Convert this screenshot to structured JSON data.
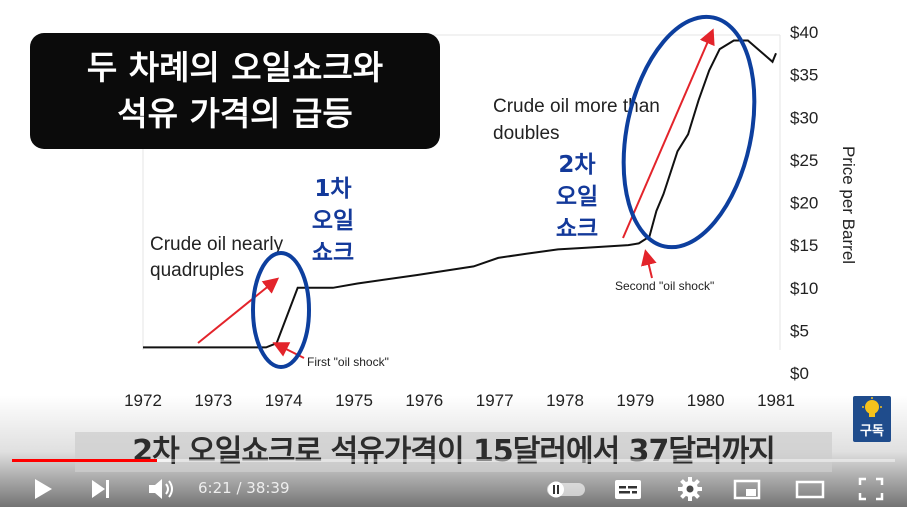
{
  "title_box": {
    "line1": "두 차례의 오일쇼크와",
    "line2": "석유 가격의 급등"
  },
  "caption": "2차 오일쇼크로 석유가격이 15달러에서 37달러까지",
  "chart_data": {
    "type": "line",
    "title": "",
    "xlabel": "",
    "ylabel": "Price per Barrel",
    "x_ticks": [
      "1972",
      "1973",
      "1974",
      "1975",
      "1976",
      "1977",
      "1978",
      "1979",
      "1980",
      "1981"
    ],
    "y_ticks": [
      "$0",
      "$5",
      "$10",
      "$15",
      "$20",
      "$25",
      "$30",
      "$35",
      "$40"
    ],
    "xlim": [
      1972,
      1981
    ],
    "ylim": [
      0,
      40
    ],
    "grid": false,
    "series": [
      {
        "x": [
          1972.0,
          1973.75,
          1973.9,
          1974.2,
          1974.7,
          1975.05,
          1975.9,
          1976.7,
          1977.05,
          1977.45,
          1977.9,
          1978.3,
          1978.9,
          1979.05,
          1979.2,
          1979.3,
          1979.4,
          1979.5,
          1979.6,
          1979.75,
          1979.9,
          1980.05,
          1980.2,
          1980.4,
          1980.6,
          1980.95,
          1981.0
        ],
        "y": [
          3.0,
          3.0,
          3.5,
          10.0,
          10.0,
          10.5,
          11.5,
          12.5,
          13.5,
          14.0,
          14.5,
          14.7,
          15.0,
          15.2,
          16.0,
          19.0,
          21.0,
          23.5,
          26.0,
          28.0,
          32.0,
          35.5,
          38.0,
          39.0,
          39.0,
          36.5,
          37.5
        ]
      }
    ],
    "annotations": [
      {
        "text": "Crude oil nearly",
        "text2": "quadruples",
        "x": 1973.3,
        "y": 6.5
      },
      {
        "text": "First \"oil shock\"",
        "x": 1974.0,
        "y": 2.0
      },
      {
        "text": "Crude oil more than",
        "text2": "doubles",
        "x": 1979.0,
        "y": 26.5
      },
      {
        "text": "Second \"oil shock\"",
        "x": 1979.1,
        "y": 12.0
      }
    ],
    "korean_labels": [
      {
        "line1": "1차",
        "line2": "오일",
        "line3": "쇼크"
      },
      {
        "line1": "2차",
        "line2": "오일",
        "line3": "쇼크"
      }
    ]
  },
  "player": {
    "time_current": "6:21",
    "time_total": "38:39",
    "time_separator": " / ",
    "progress": 0.164,
    "buffer": 0.18,
    "subscribe_label": "구독",
    "accent_color": "#ff0000",
    "icons": [
      "play-icon",
      "next-icon",
      "volume-icon",
      "autoplay-toggle-icon",
      "subtitles-icon",
      "settings-gear-icon",
      "miniplayer-icon",
      "theater-icon",
      "fullscreen-icon"
    ]
  }
}
